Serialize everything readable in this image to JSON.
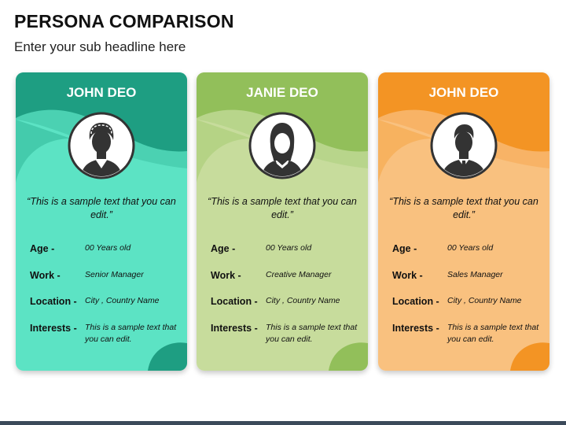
{
  "header": {
    "title": "PERSONA COMPARISON",
    "subtitle": "Enter your sub headline here"
  },
  "labels": {
    "age": "Age -",
    "work": "Work -",
    "location": "Location -",
    "interests": "Interests -"
  },
  "cards": [
    {
      "name": "JOHN DEO",
      "quote": "“This is a sample text that you can edit.”",
      "age": "00 Years old",
      "work": "Senior Manager",
      "location": "City , Country Name",
      "interests": "This is a sample text that you can edit.",
      "colors": {
        "light": "#5ce3c4",
        "dark": "#1e9e82",
        "mid": "#3fc4a6"
      },
      "icon": "man-avatar-icon"
    },
    {
      "name": "JANIE DEO",
      "quote": "“This is a sample text that you can edit.”",
      "age": "00 Years old",
      "work": "Creative Manager",
      "location": "City , Country Name",
      "interests": "This is a sample text that you can edit.",
      "colors": {
        "light": "#c7dc9c",
        "dark": "#92bf5a",
        "mid": "#aed080"
      },
      "icon": "woman-avatar-icon"
    },
    {
      "name": "JOHN DEO",
      "quote": "“This is a sample text that you can edit.”",
      "age": "00 Years old",
      "work": "Sales Manager",
      "location": "City , Country Name",
      "interests": "This is a sample text that you can edit.",
      "colors": {
        "light": "#f9c17f",
        "dark": "#f39424",
        "mid": "#f6aa55"
      },
      "icon": "man-suit-avatar-icon"
    }
  ]
}
